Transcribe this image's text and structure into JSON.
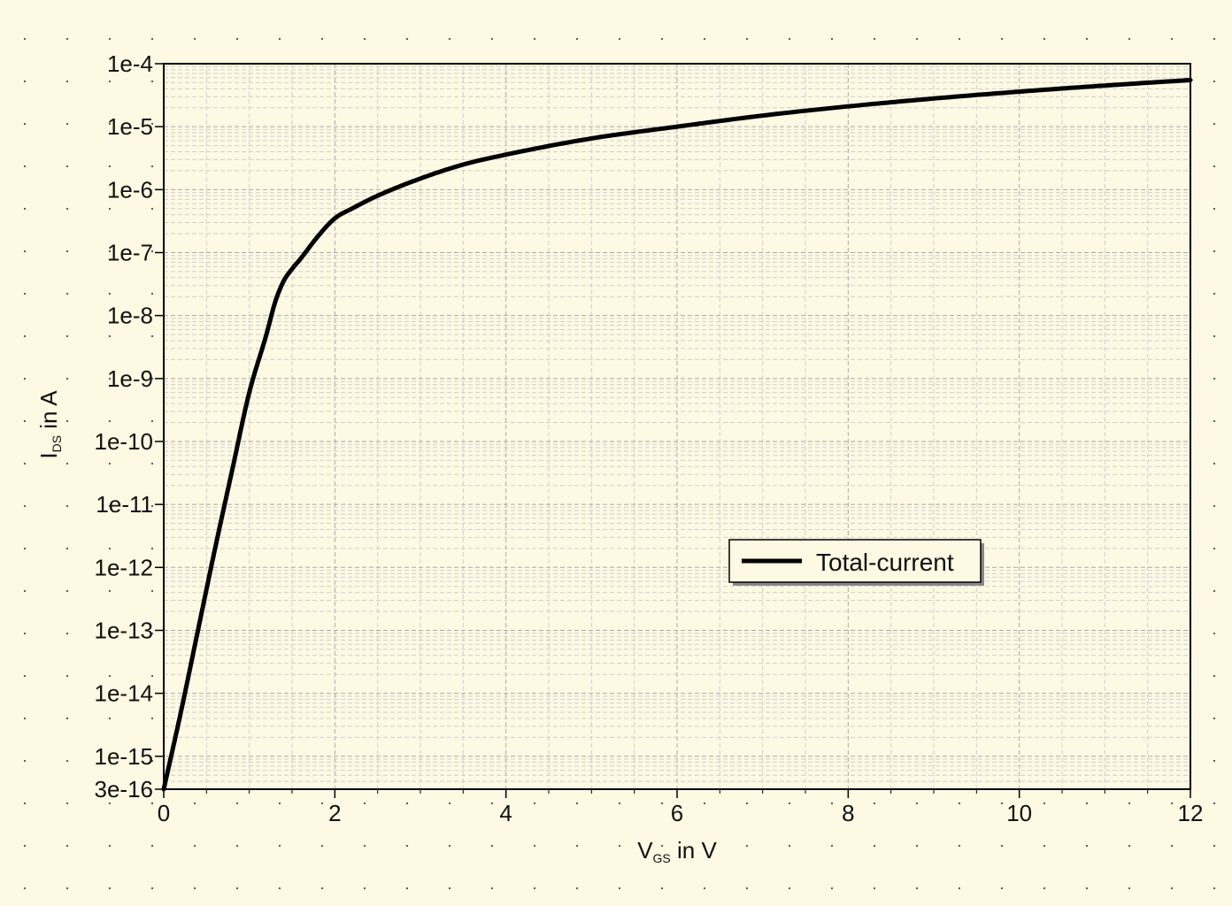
{
  "chart_data": {
    "type": "line",
    "xlabel": "VGS in V",
    "xlabel_main": "V",
    "xlabel_sub": "GS",
    "xlabel_rest": " in V",
    "ylabel": "IDS in A",
    "ylabel_main": "I",
    "ylabel_sub": "DS",
    "ylabel_rest": " in A",
    "y_scale": "log",
    "xlim": [
      0,
      12
    ],
    "ylim": [
      3e-16,
      0.0001
    ],
    "grid": true,
    "legend_position": "center-right",
    "x_ticks": [
      "0",
      "2",
      "4",
      "6",
      "8",
      "10",
      "12"
    ],
    "x_tick_values": [
      0,
      2,
      4,
      6,
      8,
      10,
      12
    ],
    "y_ticks": [
      "1e-4",
      "1e-5",
      "1e-6",
      "1e-7",
      "1e-8",
      "1e-9",
      "1e-10",
      "1e-11",
      "1e-12",
      "1e-13",
      "1e-14",
      "1e-15",
      "3e-16"
    ],
    "y_tick_values": [
      0.0001,
      1e-05,
      1e-06,
      1e-07,
      1e-08,
      1e-09,
      1e-10,
      1e-11,
      1e-12,
      1e-13,
      1e-14,
      1e-15,
      3e-16
    ],
    "series": [
      {
        "name": "Total-current",
        "color": "#000000",
        "x": [
          0,
          0.2,
          0.4,
          0.6,
          0.8,
          1.0,
          1.2,
          1.3,
          1.4,
          1.5,
          1.6,
          1.8,
          2.0,
          2.2,
          2.5,
          3.0,
          3.5,
          4.0,
          5.0,
          6.0,
          7.0,
          8.0,
          9.0,
          10.0,
          11.0,
          12.0
        ],
        "y": [
          3e-16,
          5e-15,
          1e-13,
          2e-12,
          3.5e-11,
          6e-10,
          5e-09,
          1.6e-08,
          3.5e-08,
          5.5e-08,
          8e-08,
          1.8e-07,
          3.5e-07,
          5e-07,
          8e-07,
          1.5e-06,
          2.5e-06,
          3.6e-06,
          6.5e-06,
          1e-05,
          1.5e-05,
          2.1e-05,
          2.8e-05,
          3.6e-05,
          4.5e-05,
          5.5e-05
        ]
      }
    ]
  }
}
